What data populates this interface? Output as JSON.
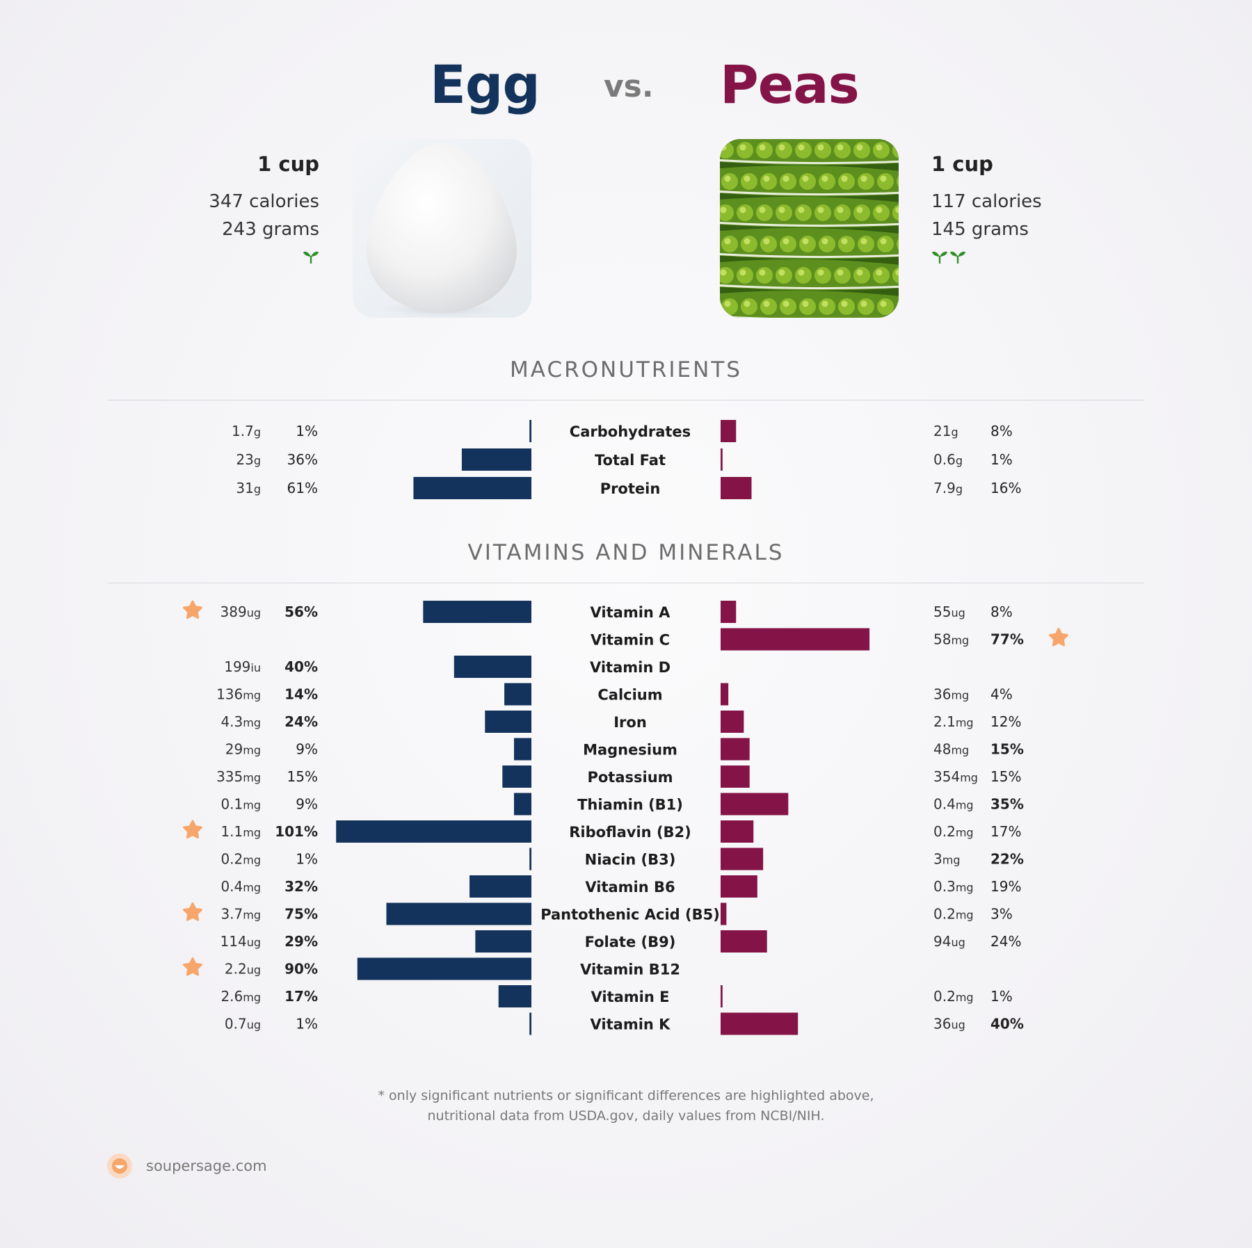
{
  "header": {
    "left_title": "Egg",
    "vs": "vs.",
    "right_title": "Peas"
  },
  "left_food": {
    "serving": "1 cup",
    "calories": "347 calories",
    "grams": "243 grams",
    "sprouts": 1
  },
  "right_food": {
    "serving": "1 cup",
    "calories": "117 calories",
    "grams": "145 grams",
    "sprouts": 2
  },
  "colors": {
    "left": "#13335c",
    "right": "#841447",
    "star": "#f6a66a",
    "sprout": "#2f8f2a"
  },
  "chart_data": {
    "type": "bar",
    "sections": [
      {
        "heading": "MACRONUTRIENTS",
        "rows": [
          {
            "name": "Carbohydrates",
            "left": {
              "amount": "1.7",
              "unit": "g",
              "pct": 1,
              "pct_label": "1%",
              "bold": false,
              "star": false
            },
            "right": {
              "amount": "21",
              "unit": "g",
              "pct": 8,
              "pct_label": "8%",
              "bold": false,
              "star": false
            }
          },
          {
            "name": "Total Fat",
            "left": {
              "amount": "23",
              "unit": "g",
              "pct": 36,
              "pct_label": "36%",
              "bold": false,
              "star": false
            },
            "right": {
              "amount": "0.6",
              "unit": "g",
              "pct": 1,
              "pct_label": "1%",
              "bold": false,
              "star": false
            }
          },
          {
            "name": "Protein",
            "left": {
              "amount": "31",
              "unit": "g",
              "pct": 61,
              "pct_label": "61%",
              "bold": false,
              "star": false
            },
            "right": {
              "amount": "7.9",
              "unit": "g",
              "pct": 16,
              "pct_label": "16%",
              "bold": false,
              "star": false
            }
          }
        ]
      },
      {
        "heading": "VITAMINS AND MINERALS",
        "rows": [
          {
            "name": "Vitamin A",
            "left": {
              "amount": "389",
              "unit": "ug",
              "pct": 56,
              "pct_label": "56%",
              "bold": true,
              "star": true
            },
            "right": {
              "amount": "55",
              "unit": "ug",
              "pct": 8,
              "pct_label": "8%",
              "bold": false,
              "star": false
            }
          },
          {
            "name": "Vitamin C",
            "left": null,
            "right": {
              "amount": "58",
              "unit": "mg",
              "pct": 77,
              "pct_label": "77%",
              "bold": true,
              "star": true
            }
          },
          {
            "name": "Vitamin D",
            "left": {
              "amount": "199",
              "unit": "iu",
              "pct": 40,
              "pct_label": "40%",
              "bold": true,
              "star": false
            },
            "right": null
          },
          {
            "name": "Calcium",
            "left": {
              "amount": "136",
              "unit": "mg",
              "pct": 14,
              "pct_label": "14%",
              "bold": true,
              "star": false
            },
            "right": {
              "amount": "36",
              "unit": "mg",
              "pct": 4,
              "pct_label": "4%",
              "bold": false,
              "star": false
            }
          },
          {
            "name": "Iron",
            "left": {
              "amount": "4.3",
              "unit": "mg",
              "pct": 24,
              "pct_label": "24%",
              "bold": true,
              "star": false
            },
            "right": {
              "amount": "2.1",
              "unit": "mg",
              "pct": 12,
              "pct_label": "12%",
              "bold": false,
              "star": false
            }
          },
          {
            "name": "Magnesium",
            "left": {
              "amount": "29",
              "unit": "mg",
              "pct": 9,
              "pct_label": "9%",
              "bold": false,
              "star": false
            },
            "right": {
              "amount": "48",
              "unit": "mg",
              "pct": 15,
              "pct_label": "15%",
              "bold": true,
              "star": false
            }
          },
          {
            "name": "Potassium",
            "left": {
              "amount": "335",
              "unit": "mg",
              "pct": 15,
              "pct_label": "15%",
              "bold": false,
              "star": false
            },
            "right": {
              "amount": "354",
              "unit": "mg",
              "pct": 15,
              "pct_label": "15%",
              "bold": false,
              "star": false
            }
          },
          {
            "name": "Thiamin (B1)",
            "left": {
              "amount": "0.1",
              "unit": "mg",
              "pct": 9,
              "pct_label": "9%",
              "bold": false,
              "star": false
            },
            "right": {
              "amount": "0.4",
              "unit": "mg",
              "pct": 35,
              "pct_label": "35%",
              "bold": true,
              "star": false
            }
          },
          {
            "name": "Riboflavin (B2)",
            "left": {
              "amount": "1.1",
              "unit": "mg",
              "pct": 101,
              "pct_label": "101%",
              "bold": true,
              "star": true
            },
            "right": {
              "amount": "0.2",
              "unit": "mg",
              "pct": 17,
              "pct_label": "17%",
              "bold": false,
              "star": false
            }
          },
          {
            "name": "Niacin (B3)",
            "left": {
              "amount": "0.2",
              "unit": "mg",
              "pct": 1,
              "pct_label": "1%",
              "bold": false,
              "star": false
            },
            "right": {
              "amount": "3",
              "unit": "mg",
              "pct": 22,
              "pct_label": "22%",
              "bold": true,
              "star": false
            }
          },
          {
            "name": "Vitamin B6",
            "left": {
              "amount": "0.4",
              "unit": "mg",
              "pct": 32,
              "pct_label": "32%",
              "bold": true,
              "star": false
            },
            "right": {
              "amount": "0.3",
              "unit": "mg",
              "pct": 19,
              "pct_label": "19%",
              "bold": false,
              "star": false
            }
          },
          {
            "name": "Pantothenic Acid (B5)",
            "left": {
              "amount": "3.7",
              "unit": "mg",
              "pct": 75,
              "pct_label": "75%",
              "bold": true,
              "star": true
            },
            "right": {
              "amount": "0.2",
              "unit": "mg",
              "pct": 3,
              "pct_label": "3%",
              "bold": false,
              "star": false
            }
          },
          {
            "name": "Folate (B9)",
            "left": {
              "amount": "114",
              "unit": "ug",
              "pct": 29,
              "pct_label": "29%",
              "bold": true,
              "star": false
            },
            "right": {
              "amount": "94",
              "unit": "ug",
              "pct": 24,
              "pct_label": "24%",
              "bold": false,
              "star": false
            }
          },
          {
            "name": "Vitamin B12",
            "left": {
              "amount": "2.2",
              "unit": "ug",
              "pct": 90,
              "pct_label": "90%",
              "bold": true,
              "star": true
            },
            "right": null
          },
          {
            "name": "Vitamin E",
            "left": {
              "amount": "2.6",
              "unit": "mg",
              "pct": 17,
              "pct_label": "17%",
              "bold": true,
              "star": false
            },
            "right": {
              "amount": "0.2",
              "unit": "mg",
              "pct": 1,
              "pct_label": "1%",
              "bold": false,
              "star": false
            }
          },
          {
            "name": "Vitamin K",
            "left": {
              "amount": "0.7",
              "unit": "ug",
              "pct": 1,
              "pct_label": "1%",
              "bold": false,
              "star": false
            },
            "right": {
              "amount": "36",
              "unit": "ug",
              "pct": 40,
              "pct_label": "40%",
              "bold": true,
              "star": false
            }
          }
        ]
      }
    ]
  },
  "footer": {
    "note_line1": "* only significant nutrients or significant differences are highlighted above,",
    "note_line2": "nutritional data from USDA.gov, daily values from NCBI/NIH.",
    "brand": "soupersage.com"
  }
}
